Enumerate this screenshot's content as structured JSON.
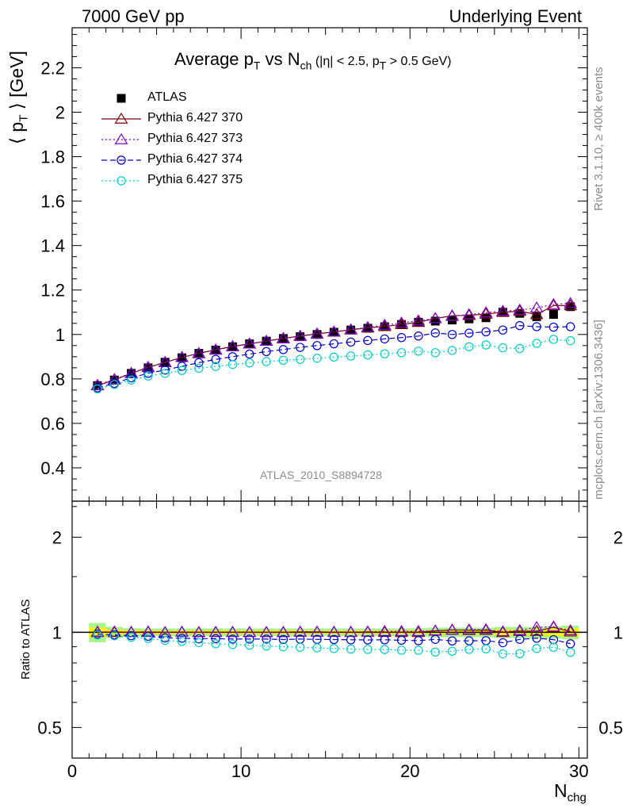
{
  "header": {
    "left": "7000 GeV pp",
    "right": "Underlying Event"
  },
  "side_labels": {
    "rivet": "Rivet 3.1.10, ≥ 400k events",
    "mcplots": "mcplots.cern.ch [arXiv:1306.3436]"
  },
  "watermark": "ATLAS_2010_S8894728",
  "title": {
    "prefix": "Average p",
    "sub1": "T",
    "mid": " vs N",
    "sub2": "ch",
    "cut": " (|η| < 2.5, p",
    "sub3": "T",
    "cut_end": " > 0.5 GeV)"
  },
  "y_label": {
    "main": "⟨ p",
    "sub": "T",
    "rest": " ⟩ [GeV]",
    "ratio": "Ratio to ATLAS"
  },
  "x_label": {
    "main": "N",
    "sub": "chg"
  },
  "colors": {
    "ATLAS": "#000000",
    "370": "#7f0000",
    "373": "#7b00d6",
    "374": "#0000d2",
    "375": "#00cfc0",
    "band_inner": "#f5f500",
    "band_outer": "#a8f58a"
  },
  "chart_data": [
    {
      "type": "scatter",
      "panel": "main",
      "x": [
        1.5,
        2.5,
        3.5,
        4.5,
        5.5,
        6.5,
        7.5,
        8.5,
        9.5,
        10.5,
        11.5,
        12.5,
        13.5,
        14.5,
        15.5,
        16.5,
        17.5,
        18.5,
        19.5,
        20.5,
        21.5,
        22.5,
        23.5,
        24.5,
        25.5,
        26.5,
        27.5,
        28.5,
        29.5
      ],
      "xlim": [
        0,
        30.5
      ],
      "ylim": [
        0.25,
        2.38
      ],
      "yticks": [
        0.4,
        0.6,
        0.8,
        1,
        1.2,
        1.4,
        1.6,
        1.8,
        2,
        2.2
      ],
      "ytick_labels": [
        "0.4",
        "0.6",
        "0.8",
        "1",
        "1.2",
        "1.4",
        "1.6",
        "1.8",
        "2",
        "2.2"
      ],
      "legend_position": "top-left",
      "series": [
        {
          "name": "ATLAS",
          "key": "ATLAS",
          "marker": "square",
          "line": "none",
          "values": [
            0.77,
            0.795,
            0.825,
            0.85,
            0.875,
            0.895,
            0.915,
            0.93,
            0.945,
            0.958,
            0.97,
            0.982,
            0.99,
            1.0,
            1.01,
            1.02,
            1.028,
            1.035,
            1.045,
            1.055,
            1.06,
            1.065,
            1.07,
            1.075,
            1.1,
            1.095,
            1.08,
            1.09,
            1.125
          ]
        },
        {
          "name": "Pythia 6.427 370",
          "key": "370",
          "marker": "triangle-open",
          "line": "solid",
          "values": [
            0.77,
            0.796,
            0.825,
            0.852,
            0.874,
            0.897,
            0.915,
            0.931,
            0.946,
            0.958,
            0.97,
            0.983,
            0.993,
            1.003,
            1.011,
            1.021,
            1.03,
            1.036,
            1.045,
            1.055,
            1.072,
            1.084,
            1.086,
            1.092,
            1.1,
            1.105,
            1.09,
            1.13,
            1.13
          ]
        },
        {
          "name": "Pythia 6.427 373",
          "key": "373",
          "marker": "triangle-open",
          "line": "dotted",
          "values": [
            0.772,
            0.798,
            0.826,
            0.853,
            0.875,
            0.897,
            0.914,
            0.93,
            0.945,
            0.958,
            0.97,
            0.981,
            0.992,
            1.002,
            1.012,
            1.022,
            1.032,
            1.042,
            1.052,
            1.062,
            1.072,
            1.082,
            1.09,
            1.098,
            1.105,
            1.11,
            1.12,
            1.135,
            1.14
          ]
        },
        {
          "name": "Pythia 6.427 374",
          "key": "374",
          "marker": "circle-open",
          "line": "dashed",
          "values": [
            0.76,
            0.78,
            0.805,
            0.825,
            0.84,
            0.857,
            0.873,
            0.888,
            0.9,
            0.912,
            0.923,
            0.932,
            0.942,
            0.95,
            0.958,
            0.966,
            0.973,
            0.98,
            0.986,
            0.993,
            1.007,
            1.0,
            1.006,
            1.012,
            1.02,
            1.04,
            1.035,
            1.033,
            1.035
          ]
        },
        {
          "name": "Pythia 6.427 375",
          "key": "375",
          "marker": "circle-open",
          "line": "dotted",
          "values": [
            0.755,
            0.775,
            0.795,
            0.813,
            0.825,
            0.838,
            0.848,
            0.856,
            0.865,
            0.872,
            0.878,
            0.884,
            0.888,
            0.893,
            0.898,
            0.903,
            0.908,
            0.913,
            0.918,
            0.925,
            0.918,
            0.928,
            0.945,
            0.953,
            0.94,
            0.937,
            0.96,
            0.978,
            0.972
          ]
        }
      ]
    },
    {
      "type": "scatter",
      "panel": "ratio",
      "ylabel": "Ratio to ATLAS",
      "xlabel": "Nchg",
      "log_y": true,
      "xlim": [
        0,
        30.5
      ],
      "ylim": [
        0.4,
        2.6
      ],
      "xticks": [
        0,
        10,
        20,
        30
      ],
      "xtick_labels": [
        "0",
        "10",
        "20",
        "30"
      ],
      "yticks": [
        0.5,
        1,
        2
      ],
      "ytick_labels": [
        "0.5",
        "1",
        "2"
      ],
      "x": [
        1.5,
        2.5,
        3.5,
        4.5,
        5.5,
        6.5,
        7.5,
        8.5,
        9.5,
        10.5,
        11.5,
        12.5,
        13.5,
        14.5,
        15.5,
        16.5,
        17.5,
        18.5,
        19.5,
        20.5,
        21.5,
        22.5,
        23.5,
        24.5,
        25.5,
        26.5,
        27.5,
        28.5,
        29.5
      ],
      "band_halfwidth_inner": [
        0.035,
        0.02,
        0.015,
        0.013,
        0.012,
        0.012,
        0.012,
        0.012,
        0.012,
        0.012,
        0.012,
        0.012,
        0.012,
        0.012,
        0.012,
        0.012,
        0.012,
        0.012,
        0.012,
        0.012,
        0.015,
        0.015,
        0.015,
        0.015,
        0.02,
        0.02,
        0.02,
        0.025,
        0.03
      ],
      "band_halfwidth_outer": [
        0.07,
        0.04,
        0.03,
        0.028,
        0.028,
        0.028,
        0.028,
        0.028,
        0.028,
        0.028,
        0.028,
        0.028,
        0.028,
        0.028,
        0.028,
        0.028,
        0.028,
        0.028,
        0.028,
        0.03,
        0.035,
        0.035,
        0.035,
        0.035,
        0.04,
        0.04,
        0.04,
        0.045,
        0.05
      ],
      "series": [
        {
          "name": "Pythia 6.427 370",
          "key": "370",
          "marker": "triangle-open",
          "line": "solid",
          "values": [
            1.0,
            1.0,
            1.0,
            1.002,
            0.999,
            1.002,
            1.0,
            1.001,
            1.001,
            1.0,
            1.0,
            1.001,
            1.003,
            1.003,
            1.001,
            1.001,
            1.002,
            1.001,
            1.0,
            1.0,
            1.011,
            1.018,
            1.015,
            1.016,
            1.0,
            1.009,
            1.009,
            1.037,
            1.004
          ]
        },
        {
          "name": "Pythia 6.427 373",
          "key": "373",
          "marker": "triangle-open",
          "line": "dotted",
          "values": [
            1.003,
            1.004,
            1.001,
            1.004,
            1.0,
            1.002,
            0.999,
            1.0,
            1.0,
            1.0,
            1.0,
            0.999,
            1.002,
            1.002,
            1.002,
            1.002,
            1.004,
            1.007,
            1.007,
            1.007,
            1.011,
            1.016,
            1.019,
            1.021,
            1.005,
            1.014,
            1.037,
            1.041,
            1.013
          ]
        },
        {
          "name": "Pythia 6.427 374",
          "key": "374",
          "marker": "circle-open",
          "line": "dashed",
          "values": [
            0.987,
            0.981,
            0.976,
            0.971,
            0.96,
            0.958,
            0.954,
            0.955,
            0.952,
            0.952,
            0.952,
            0.949,
            0.952,
            0.95,
            0.949,
            0.947,
            0.946,
            0.947,
            0.944,
            0.941,
            0.95,
            0.939,
            0.94,
            0.941,
            0.927,
            0.95,
            0.958,
            0.948,
            0.92
          ]
        },
        {
          "name": "Pythia 6.427 375",
          "key": "375",
          "marker": "circle-open",
          "line": "dotted",
          "values": [
            0.981,
            0.975,
            0.964,
            0.956,
            0.943,
            0.936,
            0.927,
            0.92,
            0.915,
            0.91,
            0.905,
            0.9,
            0.897,
            0.893,
            0.889,
            0.885,
            0.883,
            0.882,
            0.878,
            0.877,
            0.866,
            0.871,
            0.883,
            0.886,
            0.855,
            0.856,
            0.889,
            0.897,
            0.864
          ]
        }
      ]
    }
  ]
}
